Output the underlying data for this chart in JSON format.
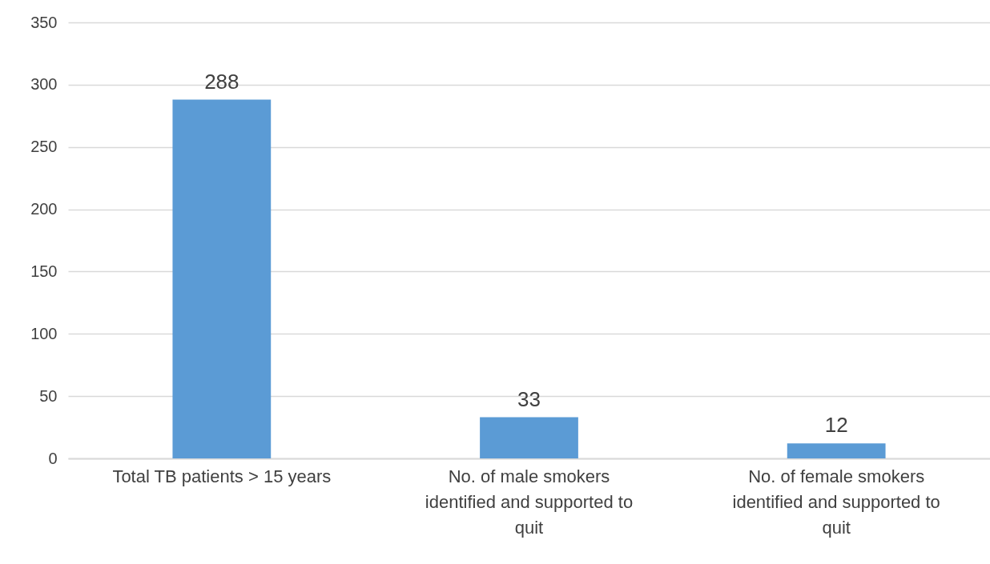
{
  "chart_data": {
    "type": "bar",
    "categories": [
      "Total TB patients > 15 years",
      "No. of male smokers identified and supported to quit",
      "No. of female smokers identified and supported to quit"
    ],
    "values": [
      288,
      33,
      12
    ],
    "color": "#5b9bd5",
    "ylim": [
      0,
      350
    ],
    "yticks": [
      0,
      50,
      100,
      150,
      200,
      250,
      300,
      350
    ],
    "grid": "y",
    "data_labels": true
  }
}
